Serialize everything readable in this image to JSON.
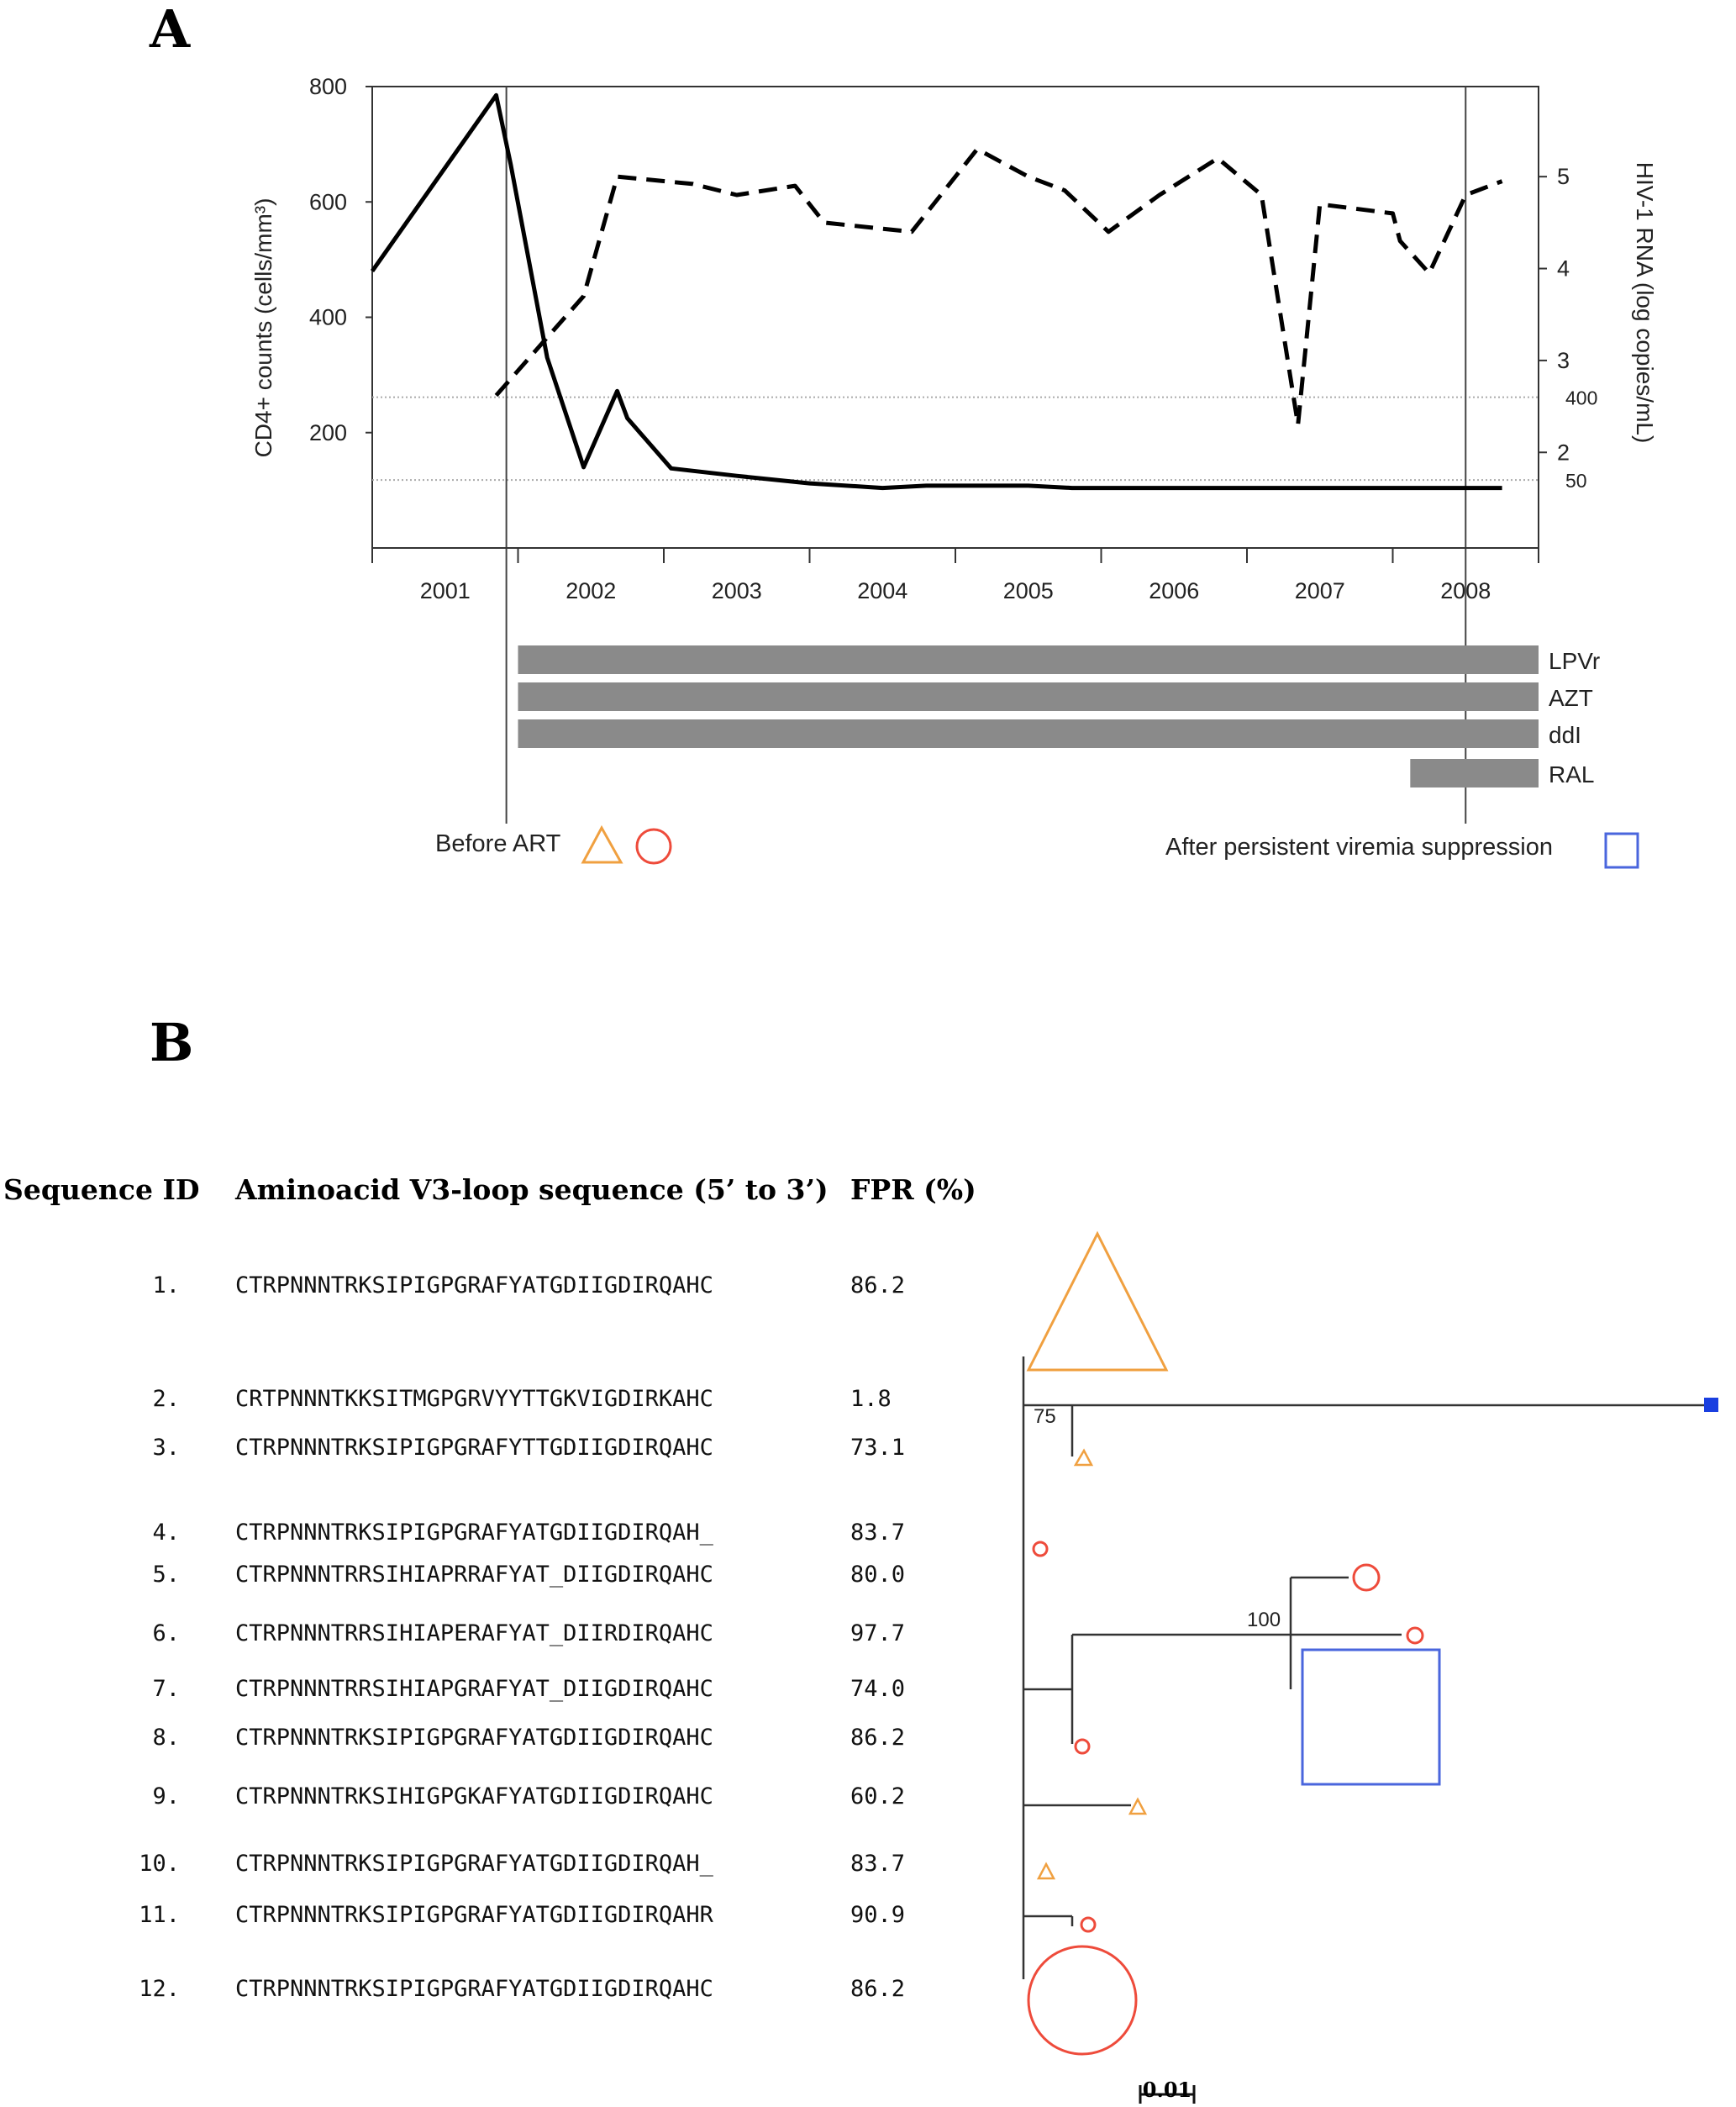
{
  "panels": {
    "a": "A",
    "b": "B"
  },
  "chart_data": [
    {
      "type": "line",
      "left_axis": {
        "label": "CD4+ counts (cells/mm³)",
        "ticks": [
          200,
          400,
          600,
          800
        ],
        "range": [
          0,
          800
        ]
      },
      "right_axis": {
        "label": "HIV-1 RNA (log copies/mL)",
        "ticks": [
          2,
          3,
          4,
          5
        ],
        "range": [
          0.96,
          5.98
        ],
        "threshold_labels": [
          {
            "label": "400",
            "value": 2.6
          },
          {
            "label": "50",
            "value": 1.7
          }
        ]
      },
      "x_axis": {
        "ticks": [
          "2001",
          "2002",
          "2003",
          "2004",
          "2005",
          "2006",
          "2007",
          "2008"
        ],
        "range": [
          2000.5,
          2008.5
        ]
      },
      "series": [
        {
          "name": "",
          "axis": "left",
          "style": "solid",
          "points": [
            [
              2000.5,
              480
            ],
            [
              2001.35,
              785
            ],
            [
              2001.45,
              665
            ],
            [
              2001.7,
              330
            ],
            [
              2001.95,
              140
            ],
            [
              2002.18,
              272
            ],
            [
              2002.25,
              225
            ],
            [
              2002.55,
              138
            ],
            [
              2003.0,
              125
            ],
            [
              2003.5,
              112
            ],
            [
              2004.0,
              104
            ],
            [
              2004.3,
              108
            ],
            [
              2005.0,
              108
            ],
            [
              2005.3,
              104
            ],
            [
              2006.0,
              104
            ],
            [
              2007.0,
              104
            ],
            [
              2008.0,
              104
            ],
            [
              2008.25,
              104
            ]
          ]
        },
        {
          "name": "",
          "axis": "right",
          "style": "dashed",
          "points": [
            [
              2001.35,
              2.62
            ],
            [
              2001.95,
              3.7
            ],
            [
              2002.18,
              5.0
            ],
            [
              2002.7,
              4.92
            ],
            [
              2003.0,
              4.8
            ],
            [
              2003.4,
              4.9
            ],
            [
              2003.6,
              4.5
            ],
            [
              2004.2,
              4.4
            ],
            [
              2004.65,
              5.3
            ],
            [
              2005.0,
              5.0
            ],
            [
              2005.25,
              4.85
            ],
            [
              2005.55,
              4.4
            ],
            [
              2005.9,
              4.8
            ],
            [
              2006.3,
              5.2
            ],
            [
              2006.6,
              4.8
            ],
            [
              2006.85,
              2.3
            ],
            [
              2007.0,
              4.7
            ],
            [
              2007.5,
              4.6
            ],
            [
              2007.55,
              4.3
            ],
            [
              2007.75,
              3.95
            ],
            [
              2008.0,
              4.8
            ],
            [
              2008.25,
              4.95
            ]
          ]
        }
      ],
      "reference_lines": [
        {
          "axis": "right",
          "value": 2.6
        },
        {
          "axis": "right",
          "value": 1.7
        }
      ],
      "event_lines": [
        2001.42,
        2008.0
      ],
      "drugs": [
        {
          "name": "LPVr",
          "start": 2001.5,
          "end": 2008.5
        },
        {
          "name": "AZT",
          "start": 2001.5,
          "end": 2008.5
        },
        {
          "name": "ddI",
          "start": 2001.5,
          "end": 2008.5
        },
        {
          "name": "RAL",
          "start": 2007.62,
          "end": 2008.5
        }
      ],
      "legend": {
        "before": "Before ART",
        "after": "After persistent viremia suppression"
      }
    },
    {
      "type": "table",
      "headers": {
        "id": "Sequence ID",
        "seq": "Aminoacid V3-loop sequence (5’ to 3’)",
        "fpr": "FPR (%)"
      },
      "rows": [
        {
          "id": "1.",
          "seq": "CTRPNNNTRKSIPIGPGRAFYATGDIIGDIRQAHC",
          "fpr": "86.2"
        },
        {
          "id": "2.",
          "seq": "CRTPNNNTKKSITMGPGRVYYTTGKVIGDIRKAHC",
          "fpr": "1.8"
        },
        {
          "id": "3.",
          "seq": "CTRPNNNTRKSIPIGPGRAFYTTGDIIGDIRQAHC",
          "fpr": "73.1"
        },
        {
          "id": "4.",
          "seq": "CTRPNNNTRKSIPIGPGRAFYATGDIIGDIRQAH_",
          "fpr": "83.7"
        },
        {
          "id": "5.",
          "seq": "CTRPNNNTRRSIHIAPRRAFYAT_DIIGDIRQAHC",
          "fpr": "80.0"
        },
        {
          "id": "6.",
          "seq": "CTRPNNNTRRSIHIAPERAFYAT_DIIRDIRQAHC",
          "fpr": "97.7"
        },
        {
          "id": "7.",
          "seq": "CTRPNNNTRRSIHIAPGRAFYAT_DIIGDIRQAHC",
          "fpr": "74.0"
        },
        {
          "id": "8.",
          "seq": "CTRPNNNTRKSIPIGPGRAFYATGDIIGDIRQAHC",
          "fpr": "86.2"
        },
        {
          "id": "9.",
          "seq": "CTRPNNNTRKSIHIGPGKAFYATGDIIGDIRQAHC",
          "fpr": "60.2"
        },
        {
          "id": "10.",
          "seq": "CTRPNNNTRKSIPIGPGRAFYATGDIIGDIRQAH_",
          "fpr": "83.7"
        },
        {
          "id": "11.",
          "seq": "CTRPNNNTRKSIPIGPGRAFYATGDIIGDIRQAHR",
          "fpr": "90.9"
        },
        {
          "id": "12.",
          "seq": "CTRPNNNTRKSIPIGPGRAFYATGDIIGDIRQAHC",
          "fpr": "86.2"
        }
      ]
    }
  ],
  "tree": {
    "bootstrap_a": "75",
    "bootstrap_b": "100",
    "scale": "0.01"
  },
  "colors": {
    "orange": "#f0a040",
    "red": "#ee4b3b",
    "blue": "#4a66dd",
    "blue_fill": "#1a3fe0",
    "bar": "#8a8a8a"
  }
}
